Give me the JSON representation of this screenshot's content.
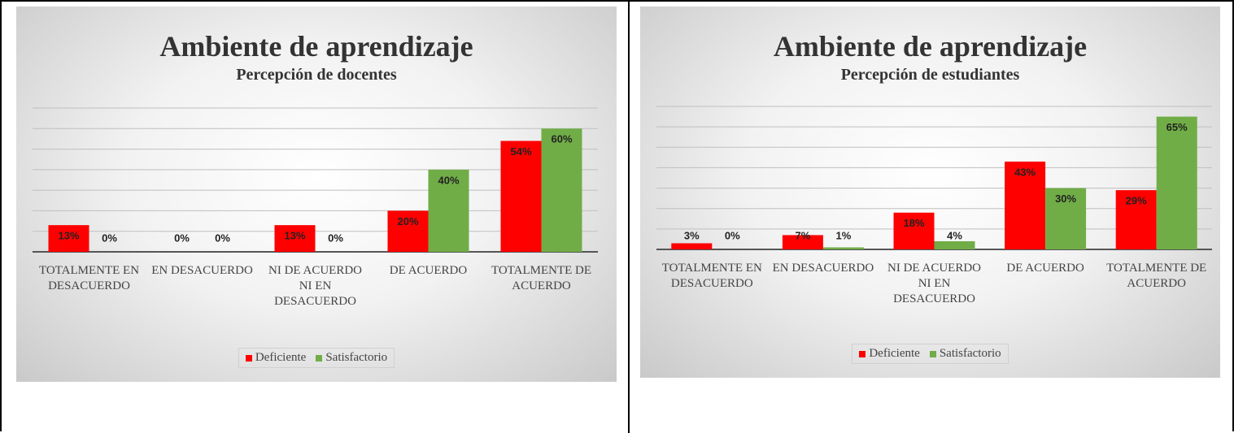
{
  "chart_data": [
    {
      "type": "bar",
      "title": "Ambiente de aprendizaje",
      "subtitle": "Percepción de docentes",
      "categories": [
        "TOTALMENTE EN DESACUERDO",
        "EN DESACUERDO",
        "NI DE ACUERDO NI EN DESACUERDO",
        "DE ACUERDO",
        "TOTALMENTE DE ACUERDO"
      ],
      "series": [
        {
          "name": "Deficiente",
          "color": "#ff0000",
          "values": [
            13,
            0,
            13,
            20,
            54
          ],
          "value_labels": [
            "13%",
            "0%",
            "13%",
            "20%",
            "54%"
          ]
        },
        {
          "name": "Satisfactorio",
          "color": "#70ad47",
          "values": [
            0,
            0,
            0,
            40,
            60
          ],
          "value_labels": [
            "0%",
            "0%",
            "0%",
            "40%",
            "60%"
          ]
        }
      ],
      "ylim": [
        0,
        70
      ],
      "yticks": [
        0,
        10,
        20,
        30,
        40,
        50,
        60,
        70
      ],
      "grid": true,
      "legend": "bottom"
    },
    {
      "type": "bar",
      "title": "Ambiente de aprendizaje",
      "subtitle": "Percepción de estudiantes",
      "categories": [
        "TOTALMENTE EN DESACUERDO",
        "EN DESACUERDO",
        "NI DE ACUERDO NI EN DESACUERDO",
        "DE ACUERDO",
        "TOTALMENTE DE ACUERDO"
      ],
      "series": [
        {
          "name": "Deficiente",
          "color": "#ff0000",
          "values": [
            3,
            7,
            18,
            43,
            29
          ],
          "value_labels": [
            "3%",
            "7%",
            "18%",
            "43%",
            "29%"
          ]
        },
        {
          "name": "Satisfactorio",
          "color": "#70ad47",
          "values": [
            0,
            1,
            4,
            30,
            65
          ],
          "value_labels": [
            "0%",
            "1%",
            "4%",
            "30%",
            "65%"
          ]
        }
      ],
      "ylim": [
        0,
        70
      ],
      "yticks": [
        0,
        10,
        20,
        30,
        40,
        50,
        60,
        70
      ],
      "grid": true,
      "legend": "bottom"
    }
  ]
}
